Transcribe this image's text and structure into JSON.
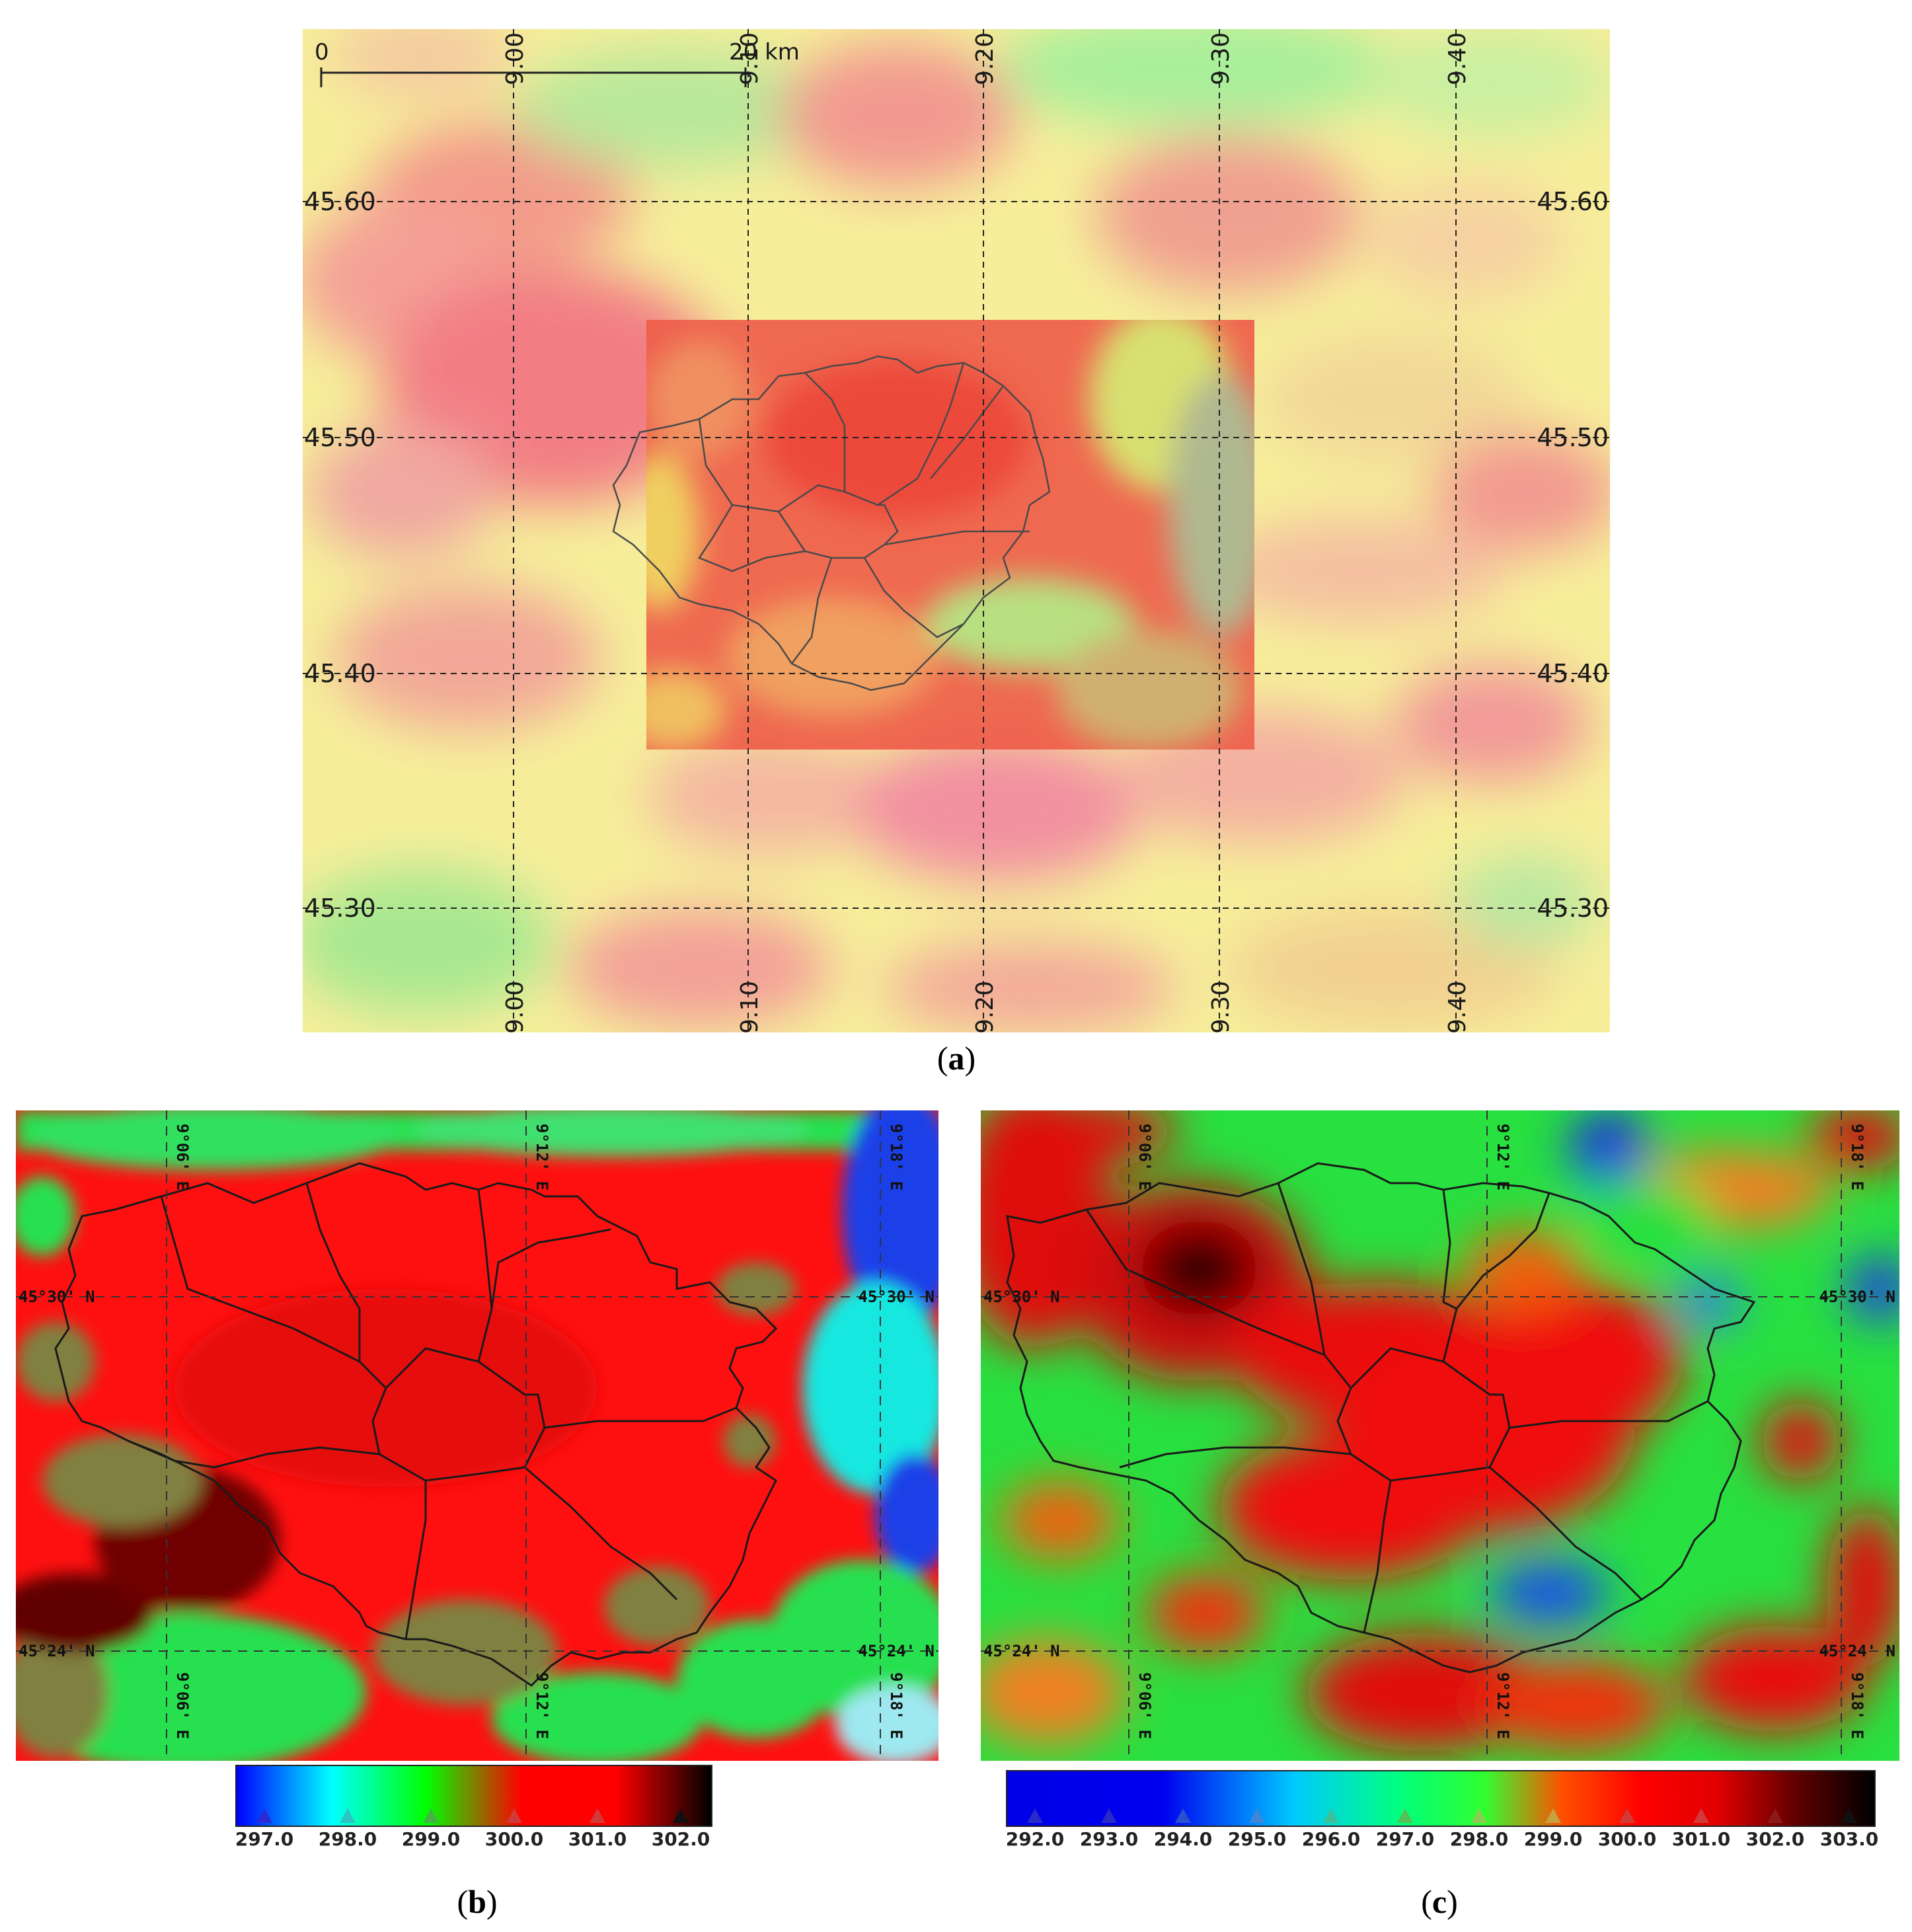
{
  "panel_a": {
    "caption_letter": "a",
    "scale_bar": {
      "start": "0",
      "end": "20 km"
    },
    "lon_labels": [
      "9.00",
      "9.10",
      "9.20",
      "9.30",
      "9.40"
    ],
    "lat_labels": [
      "45.60",
      "45.50",
      "45.40",
      "45.30"
    ]
  },
  "panel_b": {
    "caption_letter": "b",
    "lon_labels": [
      "9°06' E",
      "9°12' E",
      "9°18' E"
    ],
    "lat_labels": [
      "45°30' N",
      "45°24' N"
    ],
    "colorbar": {
      "ticks": [
        "297.0",
        "298.0",
        "299.0",
        "300.0",
        "301.0",
        "302.0"
      ],
      "marker_colors": [
        "#2b2bd6",
        "#2ec4c4",
        "#46b246",
        "#d23a3a",
        "#d23a3a",
        "#111111"
      ]
    }
  },
  "panel_c": {
    "caption_letter": "c",
    "lon_labels": [
      "9°06' E",
      "9°12' E",
      "9°18' E"
    ],
    "lat_labels": [
      "45°30' N",
      "45°24' N"
    ],
    "colorbar": {
      "ticks": [
        "292.0",
        "293.0",
        "294.0",
        "295.0",
        "296.0",
        "297.0",
        "298.0",
        "299.0",
        "300.0",
        "301.0",
        "302.0",
        "303.0"
      ],
      "marker_colors": [
        "#2a2ac8",
        "#2a2ac8",
        "#2a4fd0",
        "#3f86d8",
        "#3fbf9a",
        "#55c055",
        "#8ccc55",
        "#c9a040",
        "#d23a3a",
        "#d23a3a",
        "#8a1a1a",
        "#111111"
      ]
    }
  }
}
